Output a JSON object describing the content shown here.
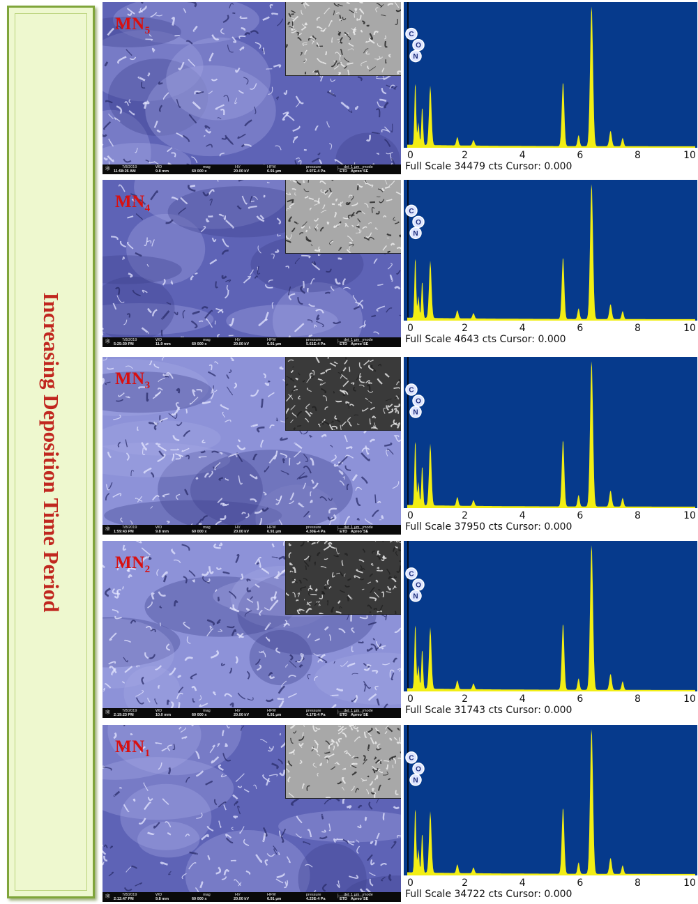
{
  "sidebar": {
    "label": "Increasing Deposition Time Period"
  },
  "rows": [
    {
      "sample": "MN",
      "sub": "5",
      "meta": {
        "date": "7/8/2019",
        "time": "11:58:26 AM",
        "wd": "9.8 mm",
        "mag": "60 000 x",
        "hv": "20.00 kV",
        "hfw": "6.91 µm",
        "pressure": "4.97E-4 Pa",
        "det": "ETD",
        "mode": "SE",
        "scale": "1 µm",
        "brand": "Apreo"
      },
      "edx": {
        "full_scale": "Full Scale 34479 cts Cursor: 0.000"
      }
    },
    {
      "sample": "MN",
      "sub": "4",
      "meta": {
        "date": "7/8/2019",
        "time": "5:25:30 PM",
        "wd": "11.9 mm",
        "mag": "60 000 x",
        "hv": "20.00 kV",
        "hfw": "6.91 µm",
        "pressure": "5.61E-4 Pa",
        "det": "ETD",
        "mode": "SE",
        "scale": "1 µm",
        "brand": "Apreo"
      },
      "edx": {
        "full_scale": "Full Scale 4643 cts Cursor: 0.000"
      }
    },
    {
      "sample": "MN",
      "sub": "3",
      "meta": {
        "date": "7/8/2019",
        "time": "1:59:43 PM",
        "wd": "9.8 mm",
        "mag": "60 000 x",
        "hv": "20.00 kV",
        "hfw": "6.91 µm",
        "pressure": "4.30E-4 Pa",
        "det": "ETD",
        "mode": "SE",
        "scale": "1 µm",
        "brand": "Apreo"
      },
      "edx": {
        "full_scale": "Full Scale 37950 cts Cursor: 0.000"
      }
    },
    {
      "sample": "MN",
      "sub": "2",
      "meta": {
        "date": "7/8/2019",
        "time": "2:19:23 PM",
        "wd": "10.0 mm",
        "mag": "60 000 x",
        "hv": "20.00 kV",
        "hfw": "6.91 µm",
        "pressure": "4.17E-4 Pa",
        "det": "ETD",
        "mode": "SE",
        "scale": "1 µm",
        "brand": "Apreo"
      },
      "edx": {
        "full_scale": "Full Scale 31743 cts Cursor: 0.000"
      }
    },
    {
      "sample": "MN",
      "sub": "1",
      "meta": {
        "date": "7/8/2019",
        "time": "2:12:47 PM",
        "wd": "9.8 mm",
        "mag": "60 000 x",
        "hv": "20.00 kV",
        "hfw": "6.91 µm",
        "pressure": "4.23E-4 Pa",
        "det": "ETD",
        "mode": "SE",
        "scale": "1 µm",
        "brand": "Apreo"
      },
      "edx": {
        "full_scale": "Full Scale 34722 cts Cursor: 0.000"
      }
    }
  ],
  "databar_labels": {
    "wd": "WD",
    "mag": "mag",
    "hv": "HV",
    "hfw": "HFW",
    "pressure": "pressure",
    "det": "det",
    "mode": "mode"
  },
  "edx_common": {
    "ticks": [
      "0",
      "2",
      "4",
      "6",
      "8",
      "10"
    ],
    "elements": [
      "C",
      "O",
      "N"
    ],
    "xlim": [
      0,
      10
    ],
    "peaks_keV": [
      0.28,
      0.39,
      0.52,
      0.8,
      1.74,
      2.3,
      5.41,
      5.95,
      6.4,
      7.06,
      7.48
    ]
  },
  "colors": {
    "sem_tint": "#6d72c5",
    "edx_bg": "#063a8c",
    "edx_peak": "#f2ee14",
    "label_red": "#d81010",
    "sidebar_bg": "#eef8cf",
    "sidebar_border": "#7fa53a"
  }
}
